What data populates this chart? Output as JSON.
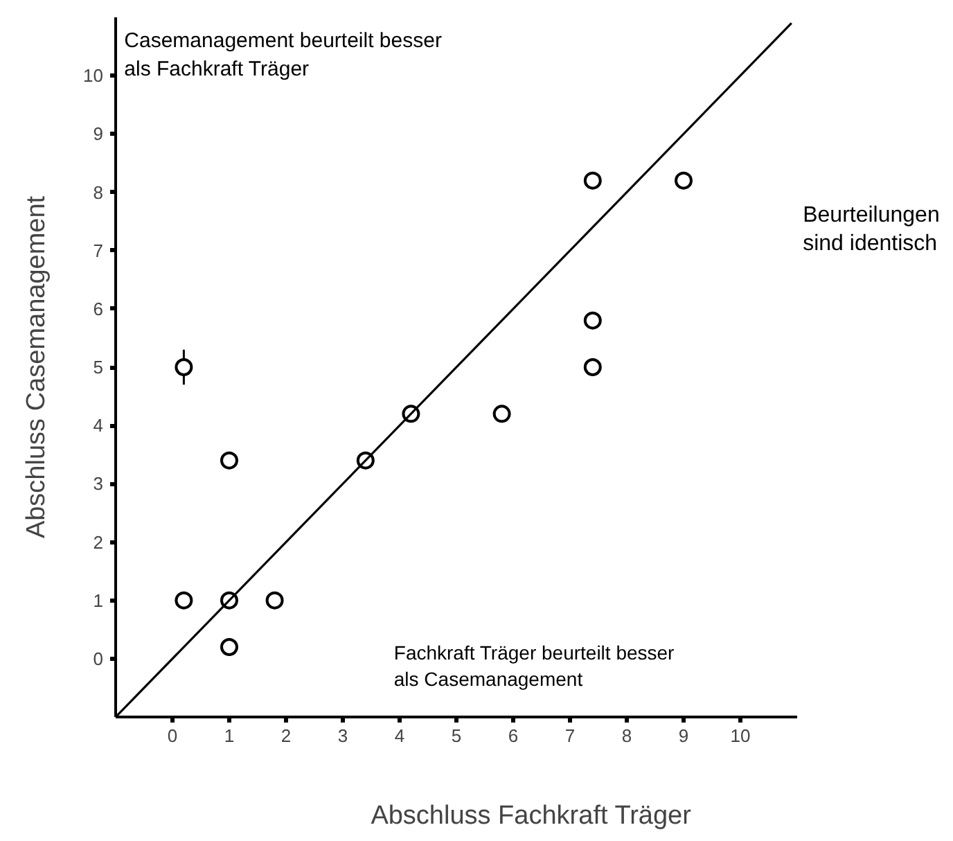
{
  "chart_data": {
    "type": "scatter",
    "xlabel": "Abschluss Fachkraft Träger",
    "ylabel": "Abschluss Casemanagement",
    "xlim": [
      -1,
      11
    ],
    "ylim": [
      -1,
      11
    ],
    "xticks": [
      0,
      1,
      2,
      3,
      4,
      5,
      6,
      7,
      8,
      9,
      10
    ],
    "yticks": [
      0,
      1,
      2,
      3,
      4,
      5,
      6,
      7,
      8,
      9,
      10
    ],
    "grid": false,
    "series": [
      {
        "marker": "circle",
        "color": "#000000",
        "x": [
          0.2,
          1,
          1.8,
          1,
          1,
          0.2,
          3.4,
          4.2,
          5.8,
          7.4,
          9,
          7.4,
          7.4
        ],
        "values": [
          1,
          1,
          1,
          0.2,
          3.4,
          5,
          3.4,
          4.2,
          4.2,
          8.2,
          8.2,
          5.8,
          5
        ],
        "errors": [
          null,
          null,
          null,
          null,
          null,
          0.3,
          null,
          null,
          null,
          null,
          null,
          null,
          null
        ]
      },
      {
        "type": "line",
        "color": "#000000",
        "line_style": "solid",
        "x": [
          -1,
          10.9
        ],
        "values": [
          -1,
          10.9
        ]
      }
    ],
    "annotations": [
      "Casemanagement beurteilt besser\nals Fachkraft Träger",
      "Beurteilungen\nsind identisch",
      "Fachkraft Träger beurteilt besser\nals Casemanagement"
    ]
  }
}
